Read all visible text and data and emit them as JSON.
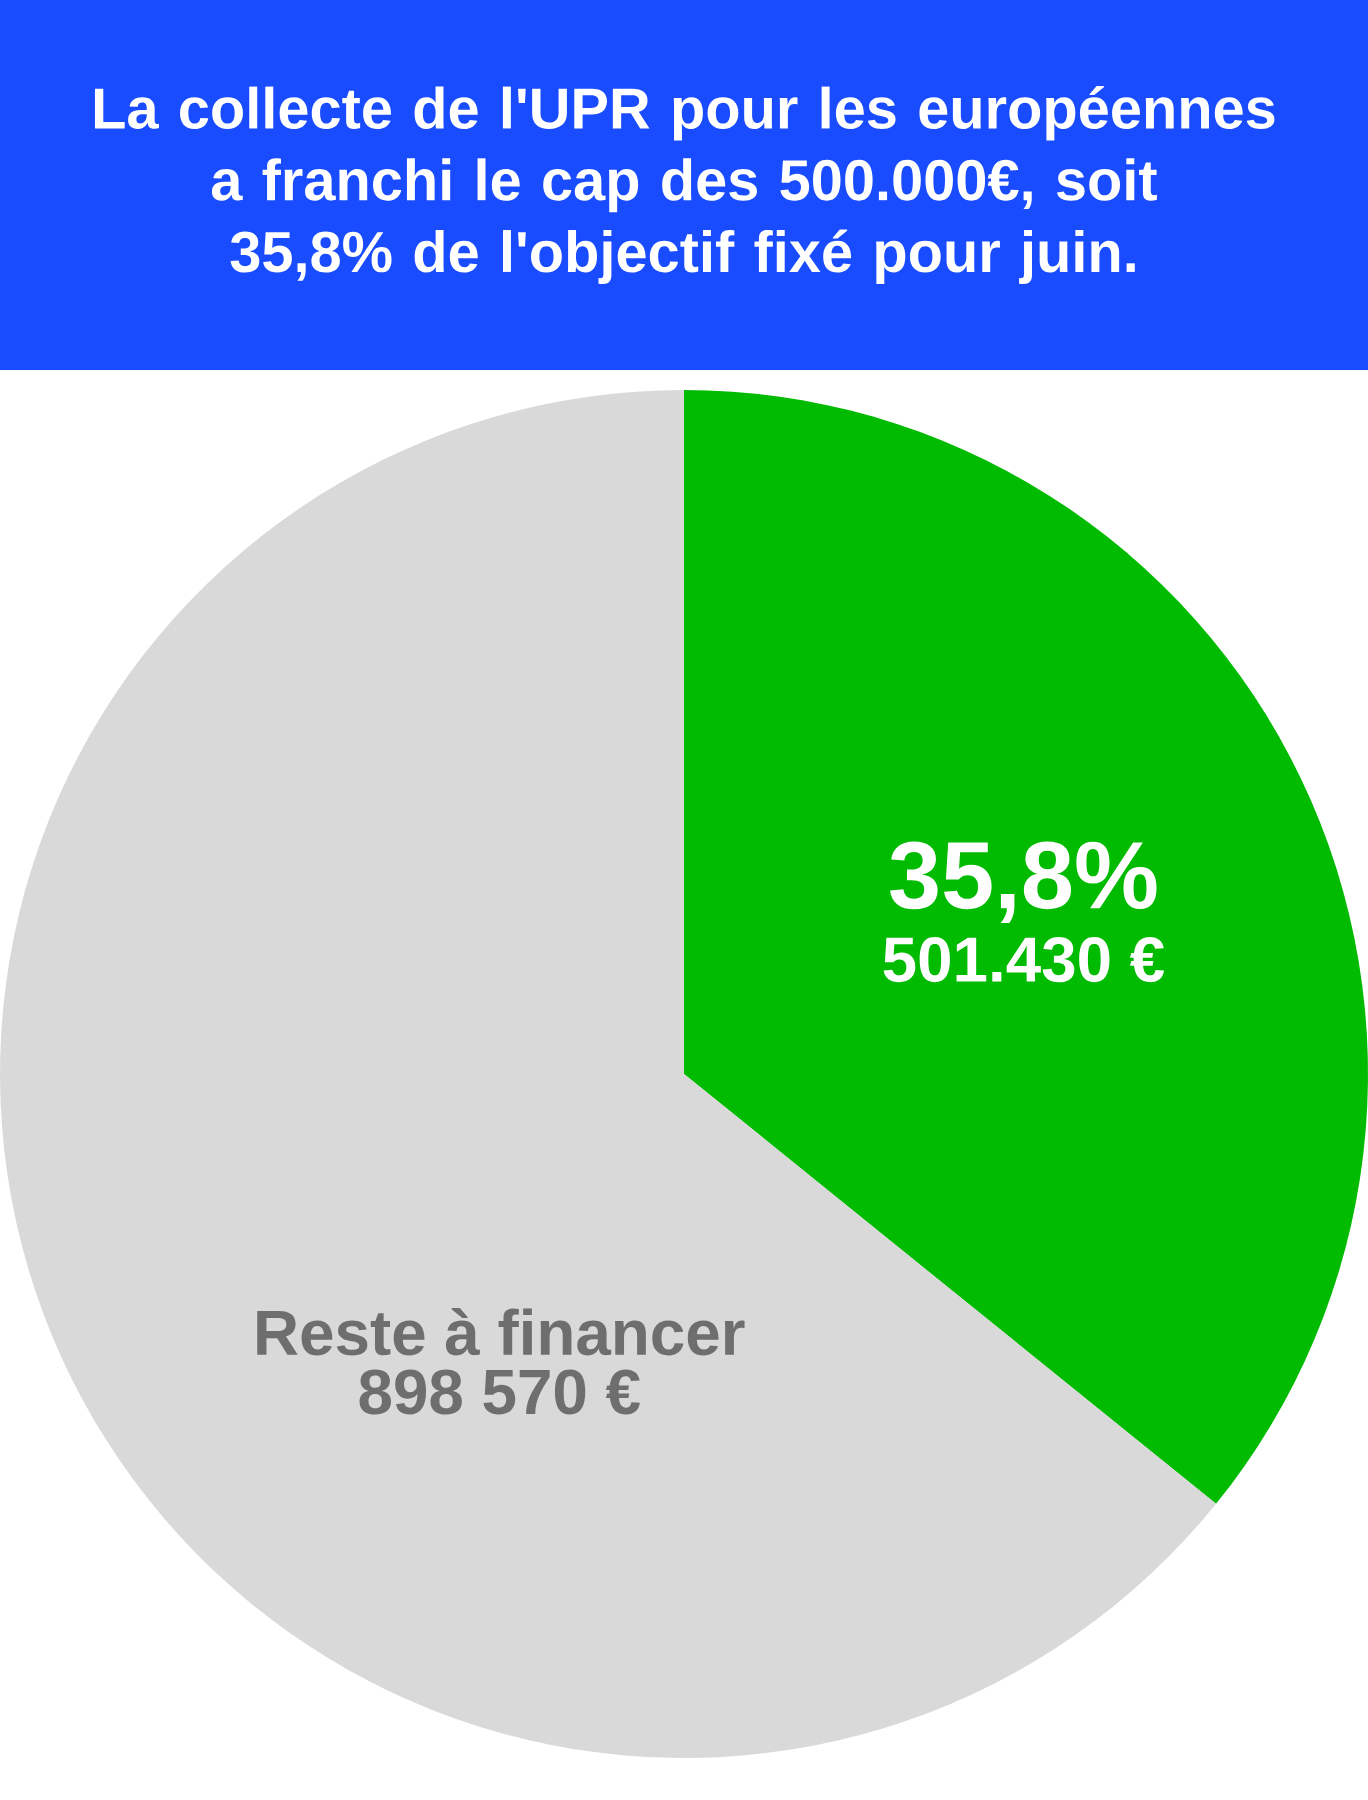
{
  "chart_data": {
    "type": "pie",
    "title": "La collecte de l'UPR pour les européennes a franchi le cap des 500.000€, soit 35,8% de l'objectif fixé pour juin.",
    "categories": [
      null,
      "Reste à financer"
    ],
    "values": [
      501430,
      898570
    ],
    "colors": [
      "#00bb00",
      "#d9d9d9"
    ],
    "value_labels": [
      "501.430 €",
      "898 570 €"
    ],
    "annotations": [
      "35,8%"
    ]
  }
}
